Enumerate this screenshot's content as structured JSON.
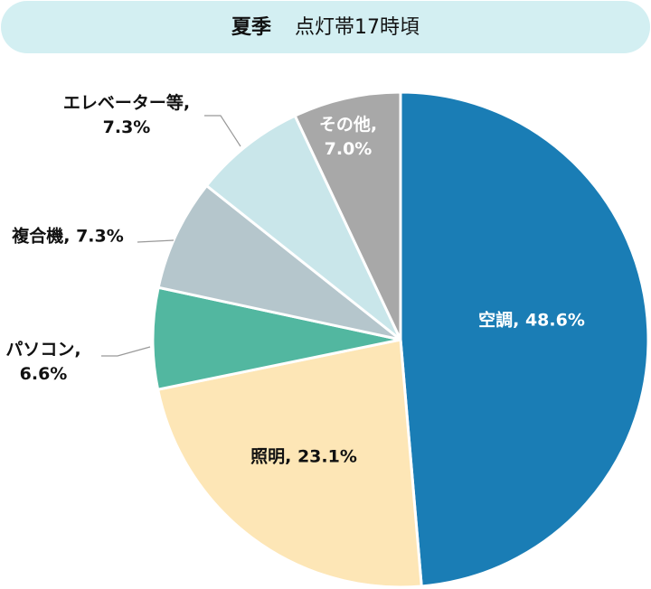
{
  "chart_data": {
    "type": "pie",
    "title": "夏季",
    "subtitle": "点灯帯17時頃",
    "values": [
      48.6,
      23.1,
      6.6,
      7.3,
      7.3,
      7.0
    ],
    "value_labels": [
      "空調, 48.6%",
      "照明, 23.1%",
      "パソコン, 6.6%",
      "複合機, 7.3%",
      "エレベーター等, 7.3%",
      "その他, 7.0%"
    ],
    "colors": [
      "#1a7db5",
      "#fde6b6",
      "#52b7a0",
      "#b5c6cc",
      "#c9e6ea",
      "#a8a8a8"
    ]
  }
}
